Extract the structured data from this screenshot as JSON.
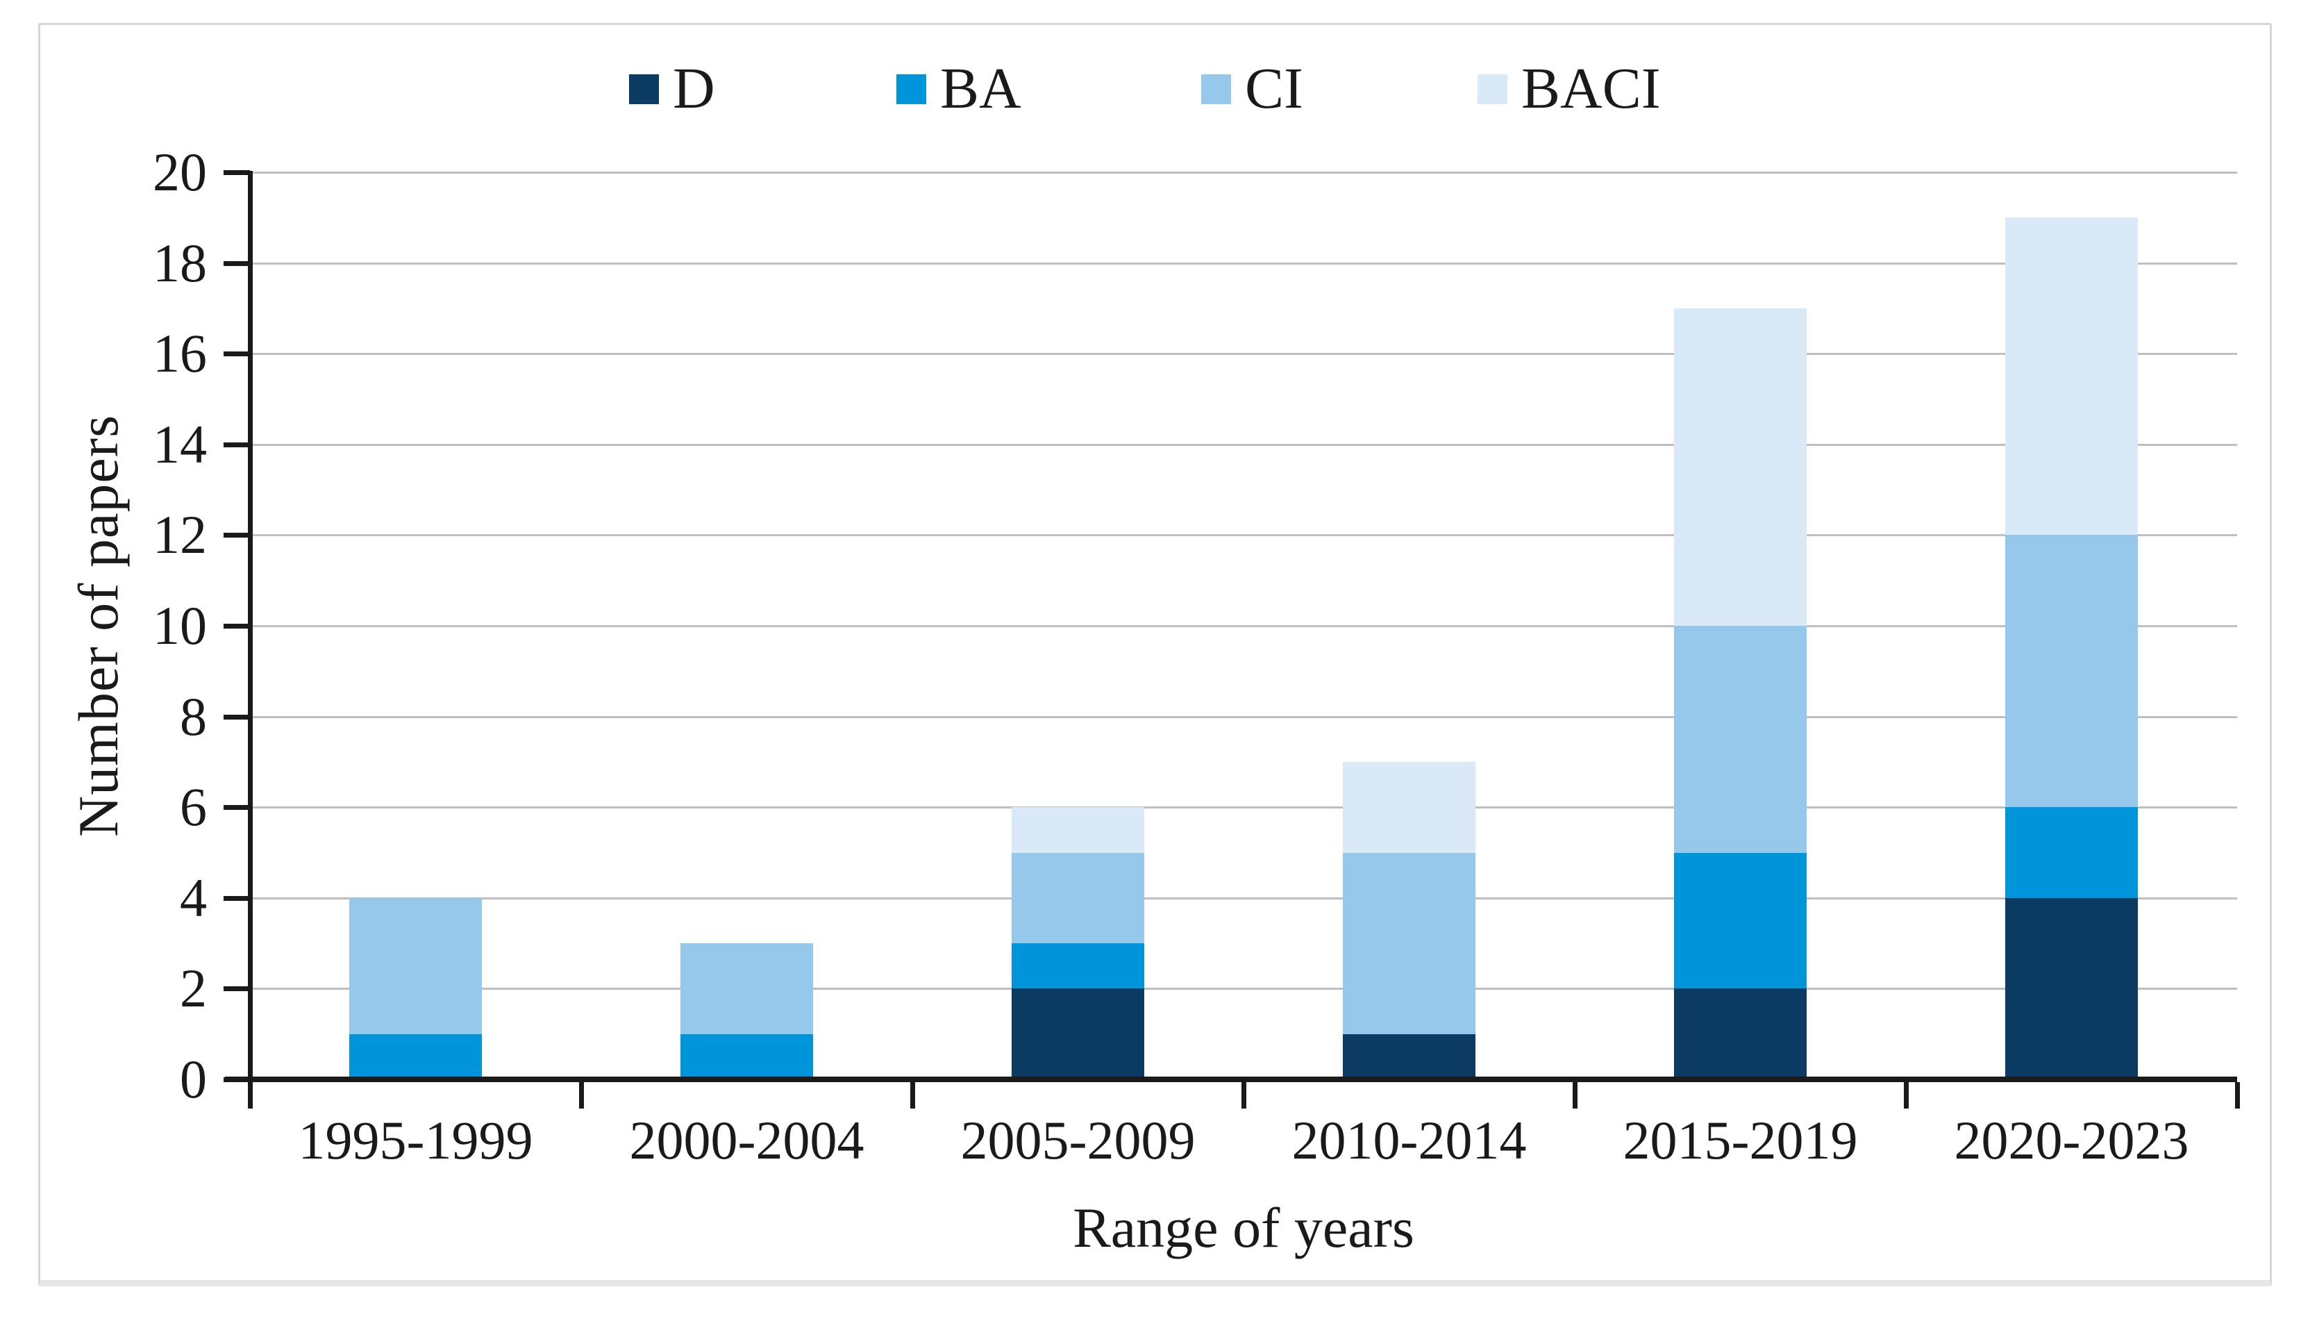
{
  "chart_data": {
    "type": "bar",
    "stacked": true,
    "title": "",
    "categories": [
      "1995-1999",
      "2000-2004",
      "2005-2009",
      "2010-2014",
      "2015-2019",
      "2020-2023"
    ],
    "series": [
      {
        "name": "D",
        "color": "#0B3B62",
        "values": [
          0,
          0,
          2,
          1,
          2,
          4
        ]
      },
      {
        "name": "BA",
        "color": "#0095DB",
        "values": [
          1,
          1,
          1,
          0,
          3,
          2
        ]
      },
      {
        "name": "CI",
        "color": "#96C8EB",
        "values": [
          3,
          2,
          2,
          4,
          5,
          6
        ]
      },
      {
        "name": "BACI",
        "color": "#D9E9F7",
        "values": [
          0,
          0,
          1,
          2,
          7,
          7
        ]
      }
    ],
    "totals": [
      4,
      3,
      6,
      7,
      17,
      19
    ],
    "xlabel": "Range of years",
    "ylabel": "Number of papers",
    "ylim": [
      0,
      20
    ],
    "y_ticks": [
      0,
      2,
      4,
      6,
      8,
      10,
      12,
      14,
      16,
      18,
      20
    ],
    "grid": true,
    "legend_position": "top"
  },
  "colors": {
    "gridline": "#BFBFBF",
    "axis": "#1A1A1A",
    "card_border": "#D6D6D6",
    "background": "#FFFFFF"
  }
}
